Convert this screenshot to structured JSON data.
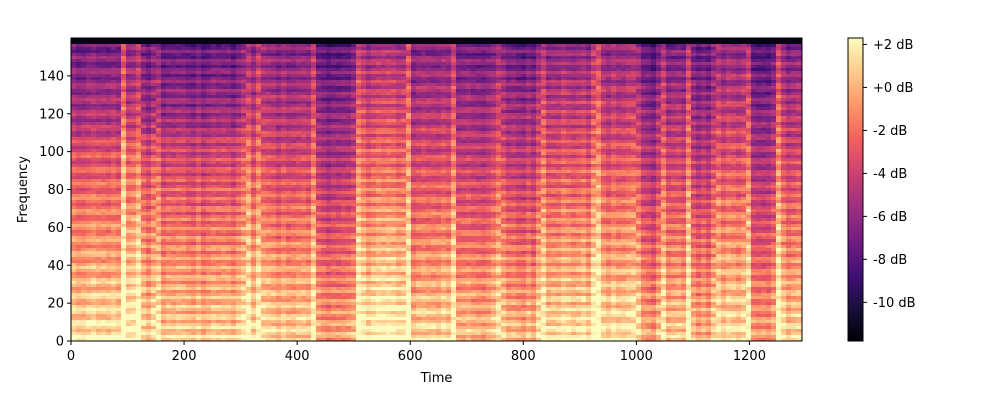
{
  "chart_data": {
    "type": "heatmap",
    "title": "",
    "xlabel": "Time",
    "ylabel": "Frequency",
    "xlim": [
      0,
      1293
    ],
    "ylim": [
      0,
      160
    ],
    "x_ticks": [
      0,
      200,
      400,
      600,
      800,
      1000,
      1200
    ],
    "y_ticks": [
      0,
      20,
      40,
      60,
      80,
      100,
      120,
      140
    ],
    "colormap": "magma",
    "colorbar": {
      "ticks": [
        "+2 dB",
        "+0 dB",
        "-2 dB",
        "-4 dB",
        "-6 dB",
        "-8 dB",
        "-10 dB"
      ],
      "tick_values": [
        2,
        0,
        -2,
        -4,
        -6,
        -8,
        -10
      ],
      "range": [
        -11.8,
        2.3
      ]
    },
    "colors": {
      "magma_stops": [
        "#000004",
        "#180f3d",
        "#440f76",
        "#721f81",
        "#9e2f7f",
        "#cd4071",
        "#f1605d",
        "#fd9668",
        "#feca8d",
        "#fcfdbf"
      ]
    },
    "segment_boundaries": [
      92,
      122,
      150,
      310,
      333,
      432,
      505,
      595,
      678,
      760,
      832,
      930,
      1000,
      1045,
      1093,
      1140,
      1197,
      1250
    ]
  }
}
